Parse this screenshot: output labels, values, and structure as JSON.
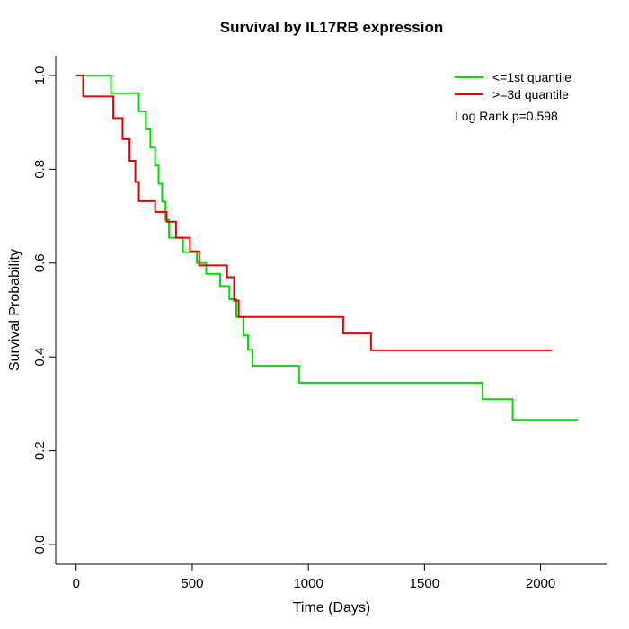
{
  "chart_data": {
    "type": "line",
    "subtype": "kaplan-meier-step",
    "title": "Survival by IL17RB expression",
    "xlabel": "Time (Days)",
    "ylabel": "Survival Probability",
    "xlim": [
      0,
      2200
    ],
    "ylim": [
      0,
      1
    ],
    "grid": false,
    "legend_position": "top-right",
    "annotation": "Log Rank p=0.598",
    "x_ticks": [
      "0",
      "500",
      "1000",
      "1500",
      "2000"
    ],
    "x_tick_values": [
      0,
      500,
      1000,
      1500,
      2000
    ],
    "y_ticks": [
      "0.0",
      "0.2",
      "0.4",
      "0.6",
      "0.8",
      "1.0"
    ],
    "y_tick_values": [
      0,
      0.2,
      0.4,
      0.6,
      0.8,
      1.0
    ],
    "series": [
      {
        "name": "<=1st quantile",
        "color": "#00DD00",
        "points": [
          [
            0,
            1.0
          ],
          [
            150,
            0.962
          ],
          [
            270,
            0.923
          ],
          [
            300,
            0.885
          ],
          [
            320,
            0.846
          ],
          [
            340,
            0.808
          ],
          [
            355,
            0.769
          ],
          [
            370,
            0.731
          ],
          [
            385,
            0.692
          ],
          [
            400,
            0.654
          ],
          [
            460,
            0.623
          ],
          [
            520,
            0.6
          ],
          [
            560,
            0.577
          ],
          [
            620,
            0.551
          ],
          [
            660,
            0.523
          ],
          [
            690,
            0.485
          ],
          [
            720,
            0.446
          ],
          [
            740,
            0.415
          ],
          [
            760,
            0.381
          ],
          [
            960,
            0.345
          ],
          [
            1750,
            0.31
          ],
          [
            1880,
            0.266
          ],
          [
            2160,
            0.266
          ]
        ]
      },
      {
        "name": ">=3d quantile",
        "color": "#E60000",
        "points": [
          [
            0,
            1.0
          ],
          [
            30,
            0.955
          ],
          [
            160,
            0.909
          ],
          [
            200,
            0.864
          ],
          [
            230,
            0.818
          ],
          [
            255,
            0.773
          ],
          [
            270,
            0.732
          ],
          [
            340,
            0.709
          ],
          [
            390,
            0.688
          ],
          [
            430,
            0.654
          ],
          [
            490,
            0.625
          ],
          [
            530,
            0.595
          ],
          [
            650,
            0.57
          ],
          [
            680,
            0.52
          ],
          [
            700,
            0.485
          ],
          [
            1150,
            0.45
          ],
          [
            1270,
            0.414
          ],
          [
            2050,
            0.414
          ]
        ]
      }
    ]
  }
}
